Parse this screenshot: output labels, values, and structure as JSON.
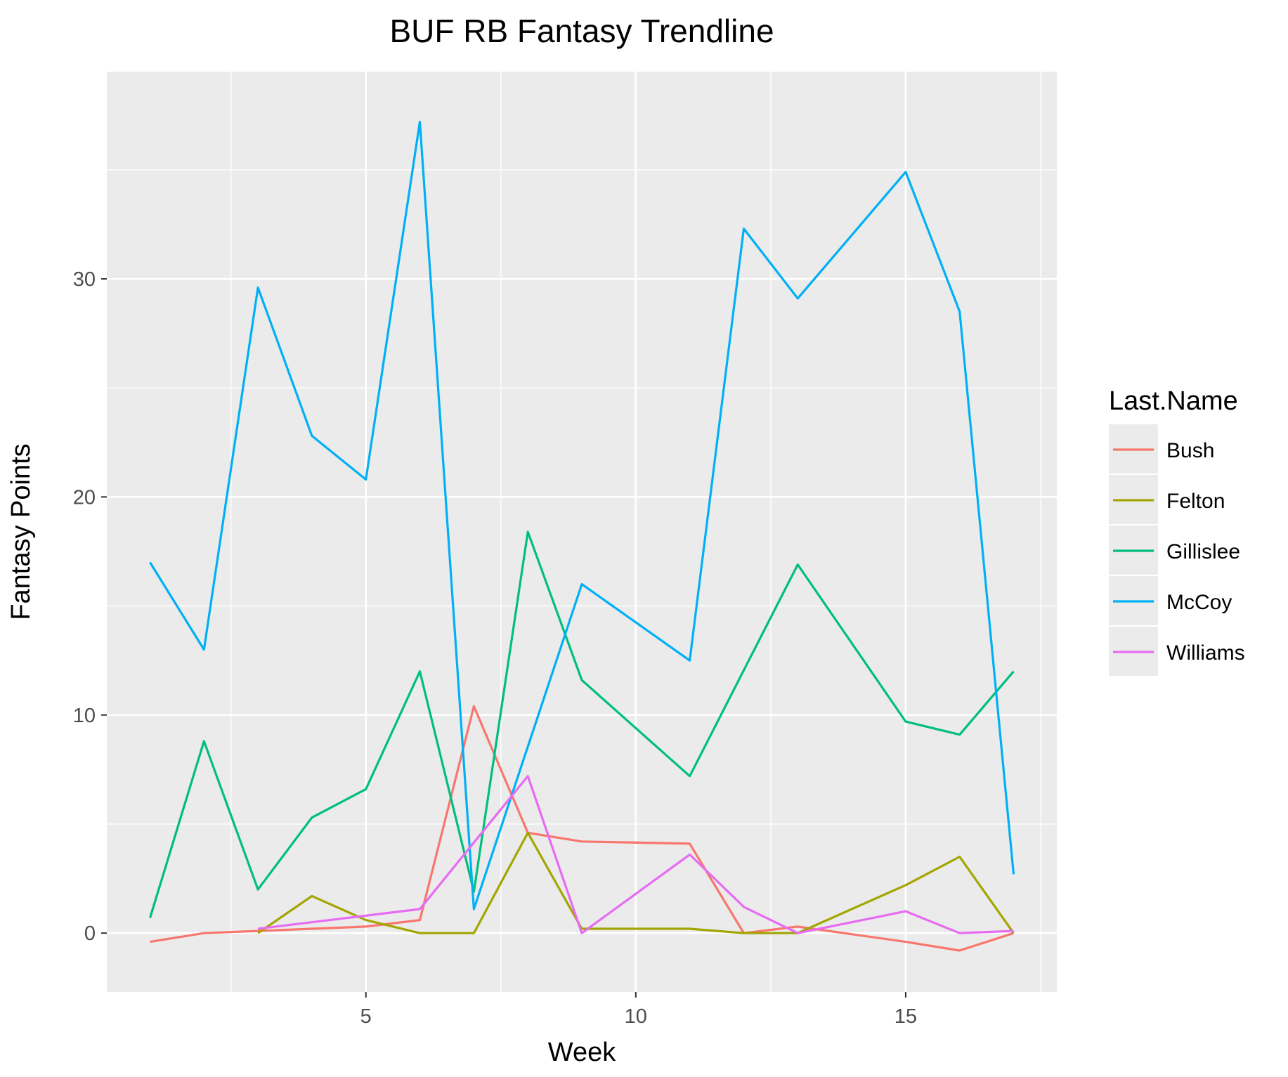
{
  "chart_data": {
    "type": "line",
    "title": "BUF RB Fantasy Trendline",
    "xlabel": "Week",
    "ylabel": "Fantasy Points",
    "xlim": [
      0.2,
      17.8
    ],
    "ylim": [
      -2.7,
      39.5
    ],
    "xticks": [
      5,
      10,
      15
    ],
    "yticks": [
      0,
      10,
      20,
      30
    ],
    "grid": true,
    "legend": {
      "title": "Last.Name",
      "position": "right"
    },
    "series": [
      {
        "name": "Bush",
        "color": "#F8766D",
        "x": [
          1,
          2,
          3,
          4,
          5,
          6,
          7,
          8,
          9,
          11,
          12,
          13,
          15,
          16,
          17
        ],
        "y": [
          -0.4,
          0,
          0.1,
          0.2,
          0.3,
          0.6,
          10.4,
          4.6,
          4.2,
          4.1,
          0,
          0.3,
          -0.4,
          -0.8,
          0
        ]
      },
      {
        "name": "Felton",
        "color": "#A3A500",
        "x": [
          3,
          4,
          5,
          6,
          7,
          8,
          9,
          11,
          12,
          13,
          15,
          16,
          17
        ],
        "y": [
          0,
          1.7,
          0.6,
          0,
          0,
          4.6,
          0.2,
          0.2,
          0,
          0,
          2.2,
          3.5,
          0
        ]
      },
      {
        "name": "Gillislee",
        "color": "#00BF7D",
        "x": [
          1,
          2,
          3,
          4,
          5,
          6,
          7,
          8,
          9,
          11,
          13,
          15,
          16,
          17
        ],
        "y": [
          0.7,
          8.8,
          2,
          5.3,
          6.6,
          12,
          1.9,
          18.4,
          11.6,
          7.2,
          16.9,
          9.7,
          9.1,
          12
        ]
      },
      {
        "name": "McCoy",
        "color": "#00B0F6",
        "x": [
          1,
          2,
          3,
          4,
          5,
          6,
          7,
          9,
          11,
          12,
          13,
          15,
          16,
          17
        ],
        "y": [
          17,
          13,
          29.6,
          22.8,
          20.8,
          37.2,
          1.1,
          16,
          12.5,
          32.3,
          29.1,
          34.9,
          28.5,
          2.7
        ]
      },
      {
        "name": "Williams",
        "color": "#E76BF3",
        "x": [
          3,
          6,
          8,
          9,
          11,
          12,
          13,
          15,
          16,
          17
        ],
        "y": [
          0.2,
          1.1,
          7.2,
          0,
          3.6,
          1.2,
          0,
          1,
          0,
          0.1
        ]
      }
    ]
  }
}
